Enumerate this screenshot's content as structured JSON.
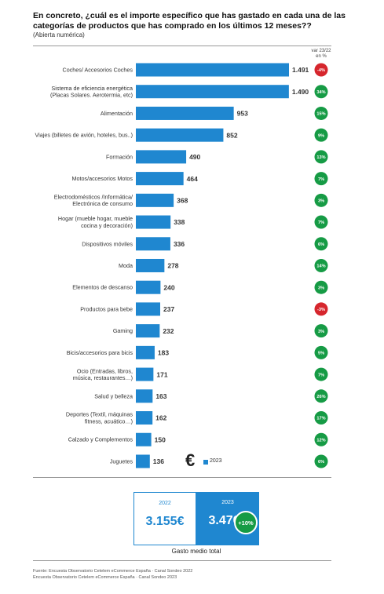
{
  "header": {
    "title": "En concreto, ¿cuál es el importe específico que has gastado en cada una de las categorías de productos que has comprado en los últimos 12 meses??",
    "subtitle": "(Abierta numérica)",
    "var_label_line1": "var 23/22",
    "var_label_line2": "en %"
  },
  "colors": {
    "bar": "#1f87d0",
    "positive": "#169b45",
    "negative": "#d6262d"
  },
  "chart_data": {
    "type": "bar",
    "orientation": "horizontal",
    "categories": [
      [
        "Coches/ Accesorios Coches"
      ],
      [
        "Sistema de eficiencia energética",
        "(Placas Solares. Aerotermia, etc)"
      ],
      [
        "Alimentación"
      ],
      [
        "Viajes (billetes de avión, hoteles, bus..)"
      ],
      [
        "Formación"
      ],
      [
        "Motos/accesorios Motos"
      ],
      [
        "Electrodomésticos /Informática/",
        "Electrónica de consumo"
      ],
      [
        "Hogar (mueble hogar, mueble",
        "cocina y decoración)"
      ],
      [
        "Dispositivos móviles"
      ],
      [
        "Moda"
      ],
      [
        "Elementos de descanso"
      ],
      [
        "Productos para bebe"
      ],
      [
        "Gaming"
      ],
      [
        "Bicis/accesorios para bicis"
      ],
      [
        "Ocio (Entradas, libros,",
        "música, restaurantes…)"
      ],
      [
        "Salud y belleza"
      ],
      [
        "Deportes (Textil, máquinas",
        "fitness, acuático…)"
      ],
      [
        "Calzado y Complementos"
      ],
      [
        "Juguetes"
      ]
    ],
    "values": [
      1491,
      1490,
      953,
      852,
      490,
      464,
      368,
      338,
      336,
      278,
      240,
      237,
      232,
      183,
      171,
      163,
      162,
      150,
      136
    ],
    "value_labels": [
      "1.491",
      "1.490",
      "953",
      "852",
      "490",
      "464",
      "368",
      "338",
      "336",
      "278",
      "240",
      "237",
      "232",
      "183",
      "171",
      "163",
      "162",
      "150",
      "136"
    ],
    "variation": [
      "-4%",
      "34%",
      "15%",
      "9%",
      "13%",
      "7%",
      "3%",
      "7%",
      "6%",
      "14%",
      "3%",
      "-3%",
      "3%",
      "5%",
      "7%",
      "26%",
      "17%",
      "12%",
      "6%"
    ],
    "legend": {
      "symbol": "€",
      "series_label": "2023"
    }
  },
  "totals": {
    "prev_year": "2022",
    "prev_value": "3.155€",
    "curr_year": "2023",
    "curr_value": "3.476€",
    "change": "+10%",
    "label": "Gasto medio total"
  },
  "source": {
    "line1": "Fuente: Encuesta Observatorio Cetelem eCommerce España · Canal Sondeo 2022",
    "line2": "Encuesta Observatorio Cetelem eCommerce España · Canal Sondeo 2023"
  }
}
